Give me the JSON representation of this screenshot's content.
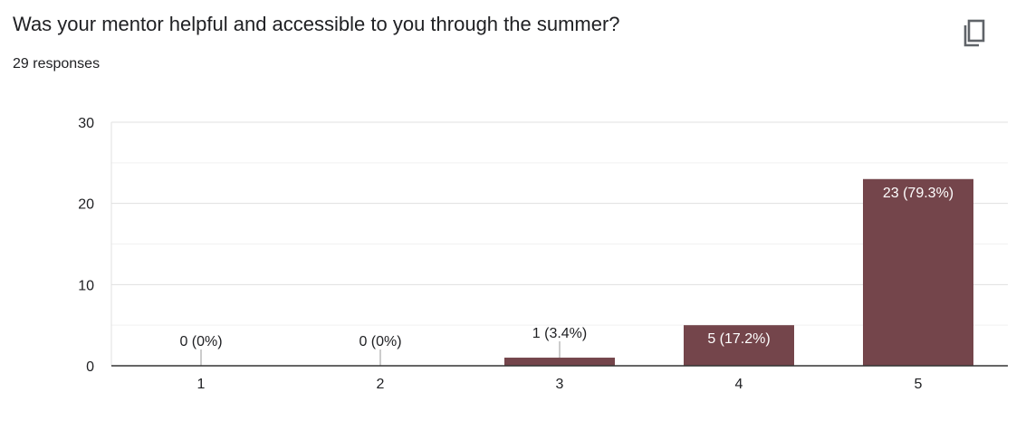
{
  "question": {
    "title": "Was your mentor helpful and accessible to you through the summer?",
    "responses": "29 responses"
  },
  "toolbar": {
    "copy_icon": "copy-icon"
  },
  "colors": {
    "bar": "#74454b",
    "grid": "#e8e8e8",
    "axis": "#333333",
    "text": "#202124",
    "label_light": "#ffffff"
  },
  "chart_data": {
    "type": "bar",
    "categories": [
      "1",
      "2",
      "3",
      "4",
      "5"
    ],
    "values": [
      0,
      0,
      1,
      5,
      23
    ],
    "data_labels": [
      "0 (0%)",
      "0 (0%)",
      "1 (3.4%)",
      "5 (17.2%)",
      "23 (79.3%)"
    ],
    "ylim": [
      0,
      30
    ],
    "yticks": [
      0,
      10,
      20,
      30
    ],
    "grid": true,
    "legend": "none"
  }
}
